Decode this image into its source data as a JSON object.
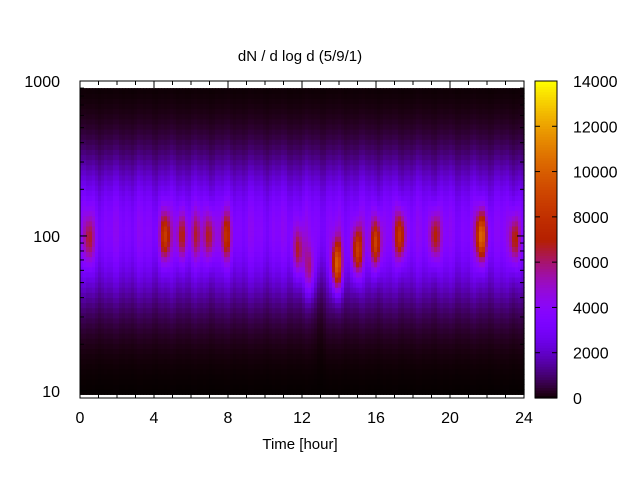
{
  "chart_data": {
    "type": "heatmap",
    "title": "dN / d log d (5/9/1)",
    "xlabel": "Time [hour]",
    "ylabel": "",
    "x_range": [
      0,
      24
    ],
    "x_ticks": [
      0,
      4,
      8,
      12,
      16,
      20,
      24
    ],
    "y_scale": "log",
    "y_range": [
      9,
      1000
    ],
    "y_ticks": [
      10,
      100,
      1000
    ],
    "data_y_extent": [
      9.5,
      900
    ],
    "colorbar": {
      "colormap": "gnuplot",
      "range": [
        0,
        14000
      ],
      "ticks": [
        0,
        2000,
        4000,
        6000,
        8000,
        10000,
        12000,
        14000
      ]
    },
    "grid": false,
    "description_series": [
      {
        "time_hour": 0.5,
        "peak_diameter": 95,
        "peak_value": 7000
      },
      {
        "time_hour": 4.6,
        "peak_diameter": 100,
        "peak_value": 9000
      },
      {
        "time_hour": 5.5,
        "peak_diameter": 100,
        "peak_value": 7500
      },
      {
        "time_hour": 6.3,
        "peak_diameter": 100,
        "peak_value": 6500
      },
      {
        "time_hour": 7.0,
        "peak_diameter": 100,
        "peak_value": 7500
      },
      {
        "time_hour": 7.9,
        "peak_diameter": 100,
        "peak_value": 8000
      },
      {
        "time_hour": 11.8,
        "peak_diameter": 80,
        "peak_value": 7500
      },
      {
        "time_hour": 12.4,
        "peak_diameter": 60,
        "peak_value": 7000
      },
      {
        "time_hour": 13.9,
        "peak_diameter": 65,
        "peak_value": 11000
      },
      {
        "time_hour": 15.0,
        "peak_diameter": 80,
        "peak_value": 9500
      },
      {
        "time_hour": 16.0,
        "peak_diameter": 90,
        "peak_value": 9500
      },
      {
        "time_hour": 17.3,
        "peak_diameter": 100,
        "peak_value": 9000
      },
      {
        "time_hour": 19.2,
        "peak_diameter": 100,
        "peak_value": 8000
      },
      {
        "time_hour": 21.7,
        "peak_diameter": 100,
        "peak_value": 11000
      },
      {
        "time_hour": 23.5,
        "peak_diameter": 95,
        "peak_value": 8000
      }
    ]
  }
}
